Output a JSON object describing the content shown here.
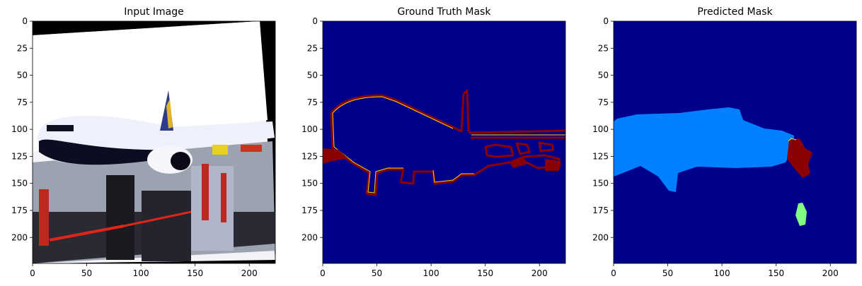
{
  "chart_data": [
    {
      "type": "image",
      "title": "Input Image",
      "xlim": [
        0,
        224
      ],
      "ylim": [
        224,
        0
      ],
      "x_ticks": [
        0,
        50,
        100,
        150,
        200
      ],
      "y_ticks": [
        0,
        25,
        50,
        75,
        100,
        125,
        150,
        175,
        200
      ],
      "content": "photo-airplane"
    },
    {
      "type": "image",
      "title": "Ground Truth Mask",
      "xlim": [
        0,
        224
      ],
      "ylim": [
        224,
        0
      ],
      "x_ticks": [
        0,
        50,
        100,
        150,
        200
      ],
      "y_ticks": [
        0,
        25,
        50,
        75,
        100,
        125,
        150,
        175,
        200
      ],
      "colormap": "jet",
      "background_color": "#00008b",
      "content": "mask-outline"
    },
    {
      "type": "image",
      "title": "Predicted Mask",
      "xlim": [
        0,
        224
      ],
      "ylim": [
        224,
        0
      ],
      "x_ticks": [
        0,
        50,
        100,
        150,
        200
      ],
      "y_ticks": [
        0,
        25,
        50,
        75,
        100,
        125,
        150,
        175,
        200
      ],
      "colormap": "jet",
      "background_color": "#00008b",
      "content": "mask-predicted"
    }
  ],
  "colors": {
    "jet_dark_blue": "#00008b",
    "jet_blue": "#0080ff",
    "jet_green": "#80ff80",
    "jet_dark_red": "#8b0000",
    "jet_yellow": "#ffd700"
  }
}
